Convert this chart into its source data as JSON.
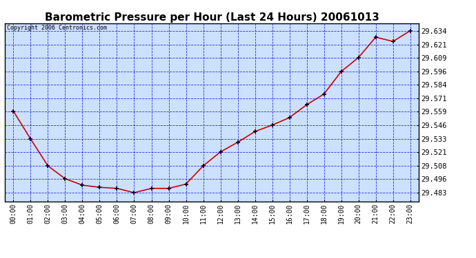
{
  "title": "Barometric Pressure per Hour (Last 24 Hours) 20061013",
  "copyright_text": "Copyright 2006 Centronics.com",
  "x_labels": [
    "00:00",
    "01:00",
    "02:00",
    "03:00",
    "04:00",
    "05:00",
    "06:00",
    "07:00",
    "08:00",
    "09:00",
    "10:00",
    "11:00",
    "12:00",
    "13:00",
    "14:00",
    "15:00",
    "16:00",
    "17:00",
    "18:00",
    "19:00",
    "20:00",
    "21:00",
    "22:00",
    "23:00"
  ],
  "y_values": [
    29.559,
    29.533,
    29.508,
    29.496,
    29.49,
    29.488,
    29.487,
    29.483,
    29.487,
    29.487,
    29.491,
    29.508,
    29.521,
    29.53,
    29.54,
    29.546,
    29.553,
    29.565,
    29.575,
    29.596,
    29.609,
    29.628,
    29.624,
    29.634
  ],
  "y_ticks": [
    29.483,
    29.496,
    29.508,
    29.521,
    29.533,
    29.546,
    29.559,
    29.571,
    29.584,
    29.596,
    29.609,
    29.621,
    29.634
  ],
  "ylim": [
    29.475,
    29.641
  ],
  "line_color": "#cc0000",
  "marker_color": "#000000",
  "bg_color": "#ffffff",
  "plot_bg_color": "#cce0ff",
  "grid_color": "#0000cc",
  "title_color": "#000000",
  "border_color": "#000000",
  "copyright_color": "#000000"
}
